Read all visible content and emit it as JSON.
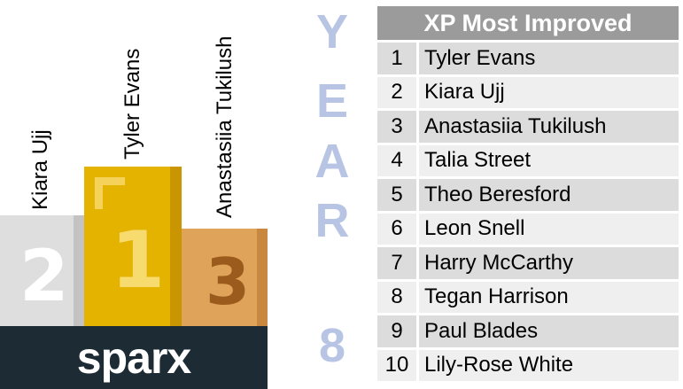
{
  "podium": {
    "second": {
      "name": "Kiara Ujj",
      "numeral": "2"
    },
    "first": {
      "name": "Tyler Evans",
      "numeral": "1"
    },
    "third": {
      "name": "Anastasiia Tukilush",
      "numeral": "3"
    }
  },
  "brand": {
    "logo": "sparx"
  },
  "year_label": {
    "letters": [
      "Y",
      "E",
      "A",
      "R",
      "8"
    ]
  },
  "leaderboard": {
    "title": "XP Most Improved",
    "rows": [
      {
        "rank": "1",
        "name": "Tyler Evans"
      },
      {
        "rank": "2",
        "name": "Kiara Ujj"
      },
      {
        "rank": "3",
        "name": "Anastasiia Tukilush"
      },
      {
        "rank": "4",
        "name": "Talia Street"
      },
      {
        "rank": "5",
        "name": "Theo Beresford"
      },
      {
        "rank": "6",
        "name": "Leon Snell"
      },
      {
        "rank": "7",
        "name": "Harry McCarthy"
      },
      {
        "rank": "8",
        "name": "Tegan Harrison"
      },
      {
        "rank": "9",
        "name": "Paul Blades"
      },
      {
        "rank": "10",
        "name": "Lily-Rose White"
      }
    ]
  },
  "colors": {
    "gold": "#e4b300",
    "silver": "#dedede",
    "bronze": "#e0a35a",
    "brand_bar": "#1d2b35",
    "year_text": "#b8c4e4",
    "header_bg": "#9b9b9b"
  }
}
